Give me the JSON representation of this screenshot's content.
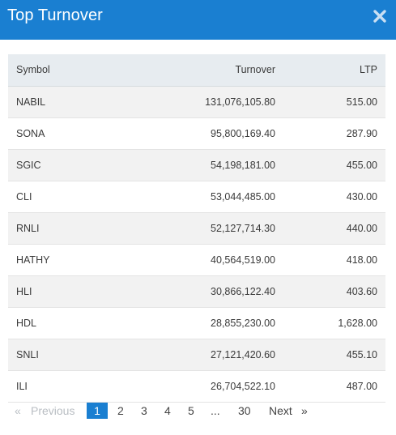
{
  "modal": {
    "title": "Top Turnover",
    "close_icon": "close-icon"
  },
  "colors": {
    "header_bg": "#1a7fd1",
    "active_page_bg": "#1a7fd1",
    "table_header_bg": "#e7ecf0",
    "row_stripe": "#f2f2f2"
  },
  "table": {
    "headers": {
      "symbol": "Symbol",
      "turnover": "Turnover",
      "ltp": "LTP"
    },
    "rows": [
      {
        "symbol": "NABIL",
        "turnover": "131,076,105.80",
        "ltp": "515.00"
      },
      {
        "symbol": "SONA",
        "turnover": "95,800,169.40",
        "ltp": "287.90"
      },
      {
        "symbol": "SGIC",
        "turnover": "54,198,181.00",
        "ltp": "455.00"
      },
      {
        "symbol": "CLI",
        "turnover": "53,044,485.00",
        "ltp": "430.00"
      },
      {
        "symbol": "RNLI",
        "turnover": "52,127,714.30",
        "ltp": "440.00"
      },
      {
        "symbol": "HATHY",
        "turnover": "40,564,519.00",
        "ltp": "418.00"
      },
      {
        "symbol": "HLI",
        "turnover": "30,866,122.40",
        "ltp": "403.60"
      },
      {
        "symbol": "HDL",
        "turnover": "28,855,230.00",
        "ltp": "1,628.00"
      },
      {
        "symbol": "SNLI",
        "turnover": "27,121,420.60",
        "ltp": "455.10"
      },
      {
        "symbol": "ILI",
        "turnover": "26,704,522.10",
        "ltp": "487.00"
      }
    ]
  },
  "pagination": {
    "prev_arrow": "«",
    "prev_label": "Previous",
    "pages": [
      "1",
      "2",
      "3",
      "4",
      "5"
    ],
    "ellipsis": "...",
    "last_page": "30",
    "next_label": "Next",
    "next_arrow": "»",
    "current_page": "1"
  }
}
